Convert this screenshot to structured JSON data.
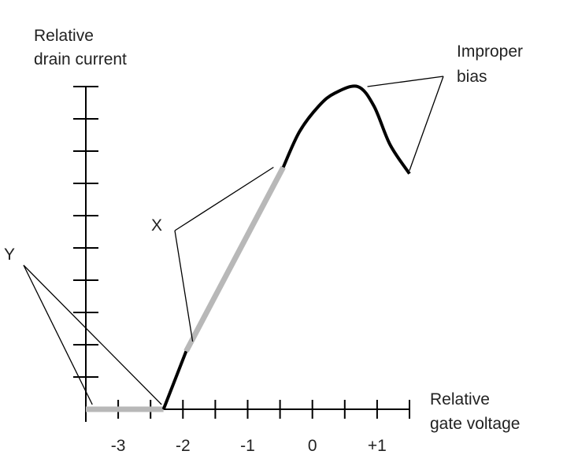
{
  "chart_data": {
    "type": "line",
    "title": "",
    "ylabel_lines": [
      "Relative",
      "drain current"
    ],
    "xlabel_lines": [
      "Relative",
      "gate voltage"
    ],
    "x_tick_labels": [
      {
        "x": -3,
        "text": "-3"
      },
      {
        "x": -2,
        "text": "-2"
      },
      {
        "x": -1,
        "text": "-1"
      },
      {
        "x": 0,
        "text": "0"
      },
      {
        "x": 1,
        "text": "+1"
      }
    ],
    "xlim": [
      -3.5,
      1.5
    ],
    "ylim": [
      0,
      10
    ],
    "x_minor_step": 0.5,
    "y_tick_count": 10,
    "grid": false,
    "colors": {
      "normal": "#000000",
      "highlight": "#b8b8b8"
    },
    "segments": [
      {
        "region": "Y",
        "style": "highlight",
        "points": [
          [
            -3.5,
            0
          ],
          [
            -2.3,
            0
          ]
        ]
      },
      {
        "region": "normal",
        "style": "normal",
        "points": [
          [
            -2.3,
            0
          ],
          [
            -1.95,
            1.8
          ]
        ]
      },
      {
        "region": "X",
        "style": "highlight",
        "points": [
          [
            -1.95,
            1.8
          ],
          [
            -0.45,
            7.5
          ]
        ]
      },
      {
        "region": "Improper bias",
        "style": "normal",
        "points": [
          [
            -0.45,
            7.5
          ],
          [
            -0.2,
            8.6
          ],
          [
            0.1,
            9.4
          ],
          [
            0.35,
            9.8
          ],
          [
            0.7,
            10.0
          ],
          [
            0.95,
            9.4
          ],
          [
            1.2,
            8.2
          ],
          [
            1.5,
            7.3
          ]
        ]
      }
    ],
    "annotations": [
      {
        "text_lines": [
          "Y"
        ],
        "targets": [
          [
            -3.4,
            0
          ],
          [
            -2.33,
            0
          ]
        ]
      },
      {
        "text_lines": [
          "X"
        ],
        "targets": [
          [
            -1.85,
            2.1
          ],
          [
            -0.6,
            7.5
          ]
        ]
      },
      {
        "text_lines": [
          "Improper",
          "bias"
        ],
        "targets": [
          [
            0.85,
            10.0
          ],
          [
            1.5,
            7.4
          ]
        ]
      }
    ]
  }
}
